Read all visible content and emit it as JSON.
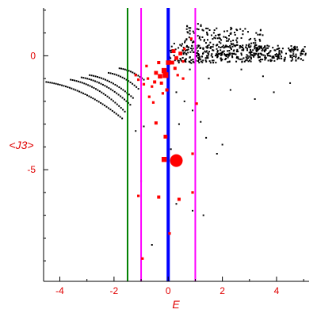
{
  "chart_data": {
    "type": "scatter",
    "xlabel": "E",
    "ylabel": "<J3>",
    "xlim": [
      -4.6,
      5.2
    ],
    "ylim": [
      -9.9,
      2.1
    ],
    "x_ticks": [
      -4,
      -2,
      0,
      2,
      4
    ],
    "y_ticks": [
      0,
      -5
    ],
    "vertical_lines": [
      {
        "x": -1.5,
        "color": "#008000"
      },
      {
        "x": -1.0,
        "color": "#ff00ff"
      },
      {
        "x": 0.0,
        "color": "#0000ff"
      },
      {
        "x": 1.0,
        "color": "#ff00ff"
      }
    ],
    "black_arcs": [
      {
        "x_start": -4.5,
        "x_end": -1.7,
        "y_start": -1.15,
        "y_end": -2.75
      },
      {
        "x_start": -3.6,
        "x_end": -1.6,
        "y_start": -1.05,
        "y_end": -2.45
      },
      {
        "x_start": -3.2,
        "x_end": -1.4,
        "y_start": -0.95,
        "y_end": -2.15
      },
      {
        "x_start": -2.9,
        "x_end": -1.3,
        "y_start": -0.85,
        "y_end": -1.85
      },
      {
        "x_start": -2.2,
        "x_end": -1.1,
        "y_start": -0.75,
        "y_end": -1.45
      },
      {
        "x_start": -1.8,
        "x_end": -0.9,
        "y_start": -0.55,
        "y_end": -1.05
      }
    ],
    "black_bands": [
      {
        "x_start": 0.0,
        "x_end": 5.1,
        "y_center": 0.1,
        "spread": 0.45
      },
      {
        "x_start": 0.6,
        "x_end": 3.5,
        "y_center": 0.55,
        "spread": 0.9
      }
    ],
    "black_scatter": [
      [
        0.3,
        -1.6
      ],
      [
        0.6,
        -2.0
      ],
      [
        0.9,
        -2.4
      ],
      [
        1.2,
        -2.9
      ],
      [
        1.4,
        -3.6
      ],
      [
        1.8,
        -4.3
      ],
      [
        0.4,
        -3.0
      ],
      [
        0.1,
        -4.1
      ],
      [
        -0.9,
        -3.1
      ],
      [
        -1.2,
        -3.3
      ],
      [
        -1.0,
        -5.5
      ],
      [
        0.3,
        -6.5
      ],
      [
        0.9,
        -6.8
      ],
      [
        -0.6,
        -8.3
      ],
      [
        1.3,
        -7.0
      ],
      [
        2.0,
        -3.9
      ],
      [
        2.3,
        -1.5
      ],
      [
        3.2,
        -1.9
      ],
      [
        3.9,
        -1.6
      ],
      [
        4.5,
        -1.2
      ],
      [
        1.5,
        -1.0
      ],
      [
        2.7,
        -0.6
      ],
      [
        3.5,
        -0.9
      ],
      [
        0.8,
        -0.6
      ],
      [
        1.1,
        1.4
      ],
      [
        1.4,
        1.2
      ],
      [
        1.6,
        0.9
      ]
    ],
    "red_points": [
      {
        "x": 0.3,
        "y": -4.6,
        "size": 8
      },
      {
        "x": -0.15,
        "y": -4.55,
        "size": 4
      },
      {
        "x": -0.1,
        "y": -3.55,
        "size": 3
      },
      {
        "x": 0.4,
        "y": -6.3,
        "size": 2.5
      },
      {
        "x": -0.35,
        "y": -6.2,
        "size": 2.5
      },
      {
        "x": -0.45,
        "y": -2.95,
        "size": 2.5
      },
      {
        "x": 1.05,
        "y": -2.1,
        "size": 2
      },
      {
        "x": 0.9,
        "y": -4.3,
        "size": 2
      },
      {
        "x": 0.9,
        "y": -6.0,
        "size": 2
      },
      {
        "x": -1.1,
        "y": -6.15,
        "size": 2
      },
      {
        "x": 0.05,
        "y": -7.8,
        "size": 2
      },
      {
        "x": -0.95,
        "y": -8.9,
        "size": 2
      },
      {
        "x": 0.85,
        "y": 0.75,
        "size": 2
      },
      {
        "x": 0.6,
        "y": 0.3,
        "size": 2
      },
      {
        "x": 0.45,
        "y": 0.1,
        "size": 3
      },
      {
        "x": 0.3,
        "y": -0.1,
        "size": 3
      },
      {
        "x": 0.15,
        "y": -0.3,
        "size": 3
      },
      {
        "x": 0.0,
        "y": -0.3,
        "size": 3.5
      },
      {
        "x": -0.15,
        "y": -0.65,
        "size": 4
      },
      {
        "x": -0.1,
        "y": -0.85,
        "size": 4.5
      },
      {
        "x": -0.3,
        "y": -0.9,
        "size": 3.5
      },
      {
        "x": -0.45,
        "y": -0.75,
        "size": 3
      },
      {
        "x": -0.5,
        "y": -1.15,
        "size": 2.5
      },
      {
        "x": -0.25,
        "y": -1.2,
        "size": 2.5
      },
      {
        "x": -0.6,
        "y": -1.35,
        "size": 2
      },
      {
        "x": -0.75,
        "y": -1.0,
        "size": 2
      },
      {
        "x": -0.9,
        "y": -1.25,
        "size": 2
      },
      {
        "x": -1.1,
        "y": -1.05,
        "size": 2
      },
      {
        "x": -1.2,
        "y": -0.85,
        "size": 2
      },
      {
        "x": -0.05,
        "y": -1.5,
        "size": 2.5
      },
      {
        "x": -0.2,
        "y": -1.65,
        "size": 2
      },
      {
        "x": -0.7,
        "y": -1.8,
        "size": 2
      },
      {
        "x": -0.55,
        "y": -2.05,
        "size": 2
      },
      {
        "x": 0.2,
        "y": 0.2,
        "size": 3
      },
      {
        "x": 0.25,
        "y": -0.55,
        "size": 2.5
      },
      {
        "x": 0.55,
        "y": -0.25,
        "size": 2
      },
      {
        "x": 0.35,
        "y": -0.85,
        "size": 2
      },
      {
        "x": 0.55,
        "y": -1.0,
        "size": 2
      },
      {
        "x": -0.8,
        "y": -0.45,
        "size": 2
      },
      {
        "x": -0.35,
        "y": -0.3,
        "size": 2.5
      }
    ]
  }
}
